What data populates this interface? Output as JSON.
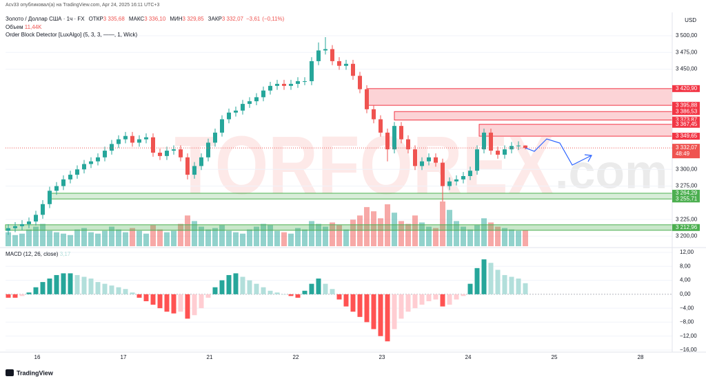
{
  "header": {
    "published": "Acv33 опубликовал(а) на TradingView.com, Apr 24, 2025 16:11 UTC+3",
    "symbol": "Золото / Доллар США · 1ч · FX",
    "ohlc": [
      {
        "name": "ОТКР",
        "value": 3335.68,
        "label": "3 335,68"
      },
      {
        "name": "МАКС",
        "value": 3336.1,
        "label": "3 336,10"
      },
      {
        "name": "МИН",
        "value": 3329.85,
        "label": "3 329,85"
      },
      {
        "name": "ЗАКР",
        "value": 3332.07,
        "label": "3 332,07"
      }
    ],
    "change": {
      "value": -3.61,
      "label": "−3,61"
    },
    "change_pct": {
      "value": -0.11,
      "label": "(−0,11%)"
    },
    "volume_name": "Объем",
    "volume_value": {
      "value": 11.44,
      "label": "11,44K"
    },
    "indicator": "Order Block Detector [LuxAlgo] (5, 3, 3, ——, 1, Wick)",
    "currency": "USD",
    "brand": "TradingView"
  },
  "watermark": {
    "main": "TORFOREX",
    "suffix": ".com"
  },
  "date_labels": [
    "16",
    "17",
    "21",
    "22",
    "23",
    "24",
    "25",
    "28"
  ],
  "chart_data": [
    {
      "type": "candlestick",
      "up_color": "#26a69a",
      "down_color": "#ef5350",
      "open": [
        3208,
        3212,
        3215,
        3218,
        3222,
        3232,
        3248,
        3268,
        3275,
        3285,
        3292,
        3300,
        3308,
        3312,
        3318,
        3328,
        3338,
        3345,
        3350,
        3340,
        3345,
        3348,
        3325,
        3320,
        3328,
        3330,
        3318,
        3292,
        3305,
        3318,
        3340,
        3355,
        3375,
        3385,
        3388,
        3398,
        3402,
        3408,
        3418,
        3425,
        3428,
        3425,
        3428,
        3432,
        3432,
        3462,
        3478,
        3480,
        3462,
        3455,
        3458,
        3440,
        3420,
        3390,
        3375,
        3355,
        3330,
        3365,
        3345,
        3330,
        3305,
        3312,
        3318,
        3310,
        3275,
        3282,
        3285,
        3290,
        3298,
        3330,
        3355,
        3328,
        3322,
        3330,
        3335,
        3335.68
      ],
      "high": [
        3218,
        3221,
        3224,
        3228,
        3238,
        3254,
        3274,
        3281,
        3291,
        3298,
        3306,
        3314,
        3318,
        3324,
        3334,
        3344,
        3351,
        3356,
        3356,
        3351,
        3354,
        3354,
        3331,
        3334,
        3336,
        3336,
        3324,
        3311,
        3324,
        3346,
        3361,
        3381,
        3391,
        3394,
        3404,
        3408,
        3414,
        3424,
        3431,
        3434,
        3434,
        3434,
        3438,
        3438,
        3468,
        3490,
        3498,
        3486,
        3468,
        3464,
        3464,
        3446,
        3426,
        3396,
        3381,
        3361,
        3371,
        3371,
        3351,
        3336,
        3318,
        3324,
        3324,
        3316,
        3288,
        3291,
        3296,
        3304,
        3336,
        3361,
        3361,
        3334,
        3336,
        3341,
        3342,
        3336.1
      ],
      "low": [
        3202,
        3206,
        3209,
        3212,
        3216,
        3226,
        3242,
        3262,
        3269,
        3279,
        3286,
        3294,
        3302,
        3306,
        3312,
        3322,
        3332,
        3339,
        3334,
        3334,
        3339,
        3319,
        3314,
        3314,
        3322,
        3312,
        3285,
        3286,
        3299,
        3312,
        3334,
        3349,
        3369,
        3379,
        3382,
        3392,
        3396,
        3402,
        3412,
        3419,
        3419,
        3419,
        3422,
        3426,
        3426,
        3456,
        3472,
        3456,
        3449,
        3449,
        3434,
        3414,
        3384,
        3369,
        3349,
        3312,
        3324,
        3339,
        3324,
        3299,
        3299,
        3306,
        3304,
        3252,
        3269,
        3276,
        3279,
        3284,
        3292,
        3324,
        3322,
        3316,
        3316,
        3324,
        3329,
        3329.85
      ],
      "close": [
        3212,
        3215,
        3218,
        3222,
        3232,
        3248,
        3268,
        3275,
        3285,
        3292,
        3300,
        3308,
        3312,
        3318,
        3328,
        3338,
        3345,
        3350,
        3340,
        3345,
        3348,
        3325,
        3320,
        3328,
        3330,
        3318,
        3292,
        3305,
        3318,
        3340,
        3355,
        3375,
        3385,
        3388,
        3398,
        3402,
        3408,
        3418,
        3425,
        3428,
        3425,
        3428,
        3432,
        3432,
        3462,
        3478,
        3480,
        3462,
        3455,
        3458,
        3440,
        3420,
        3390,
        3375,
        3355,
        3330,
        3365,
        3345,
        3330,
        3305,
        3312,
        3318,
        3310,
        3275,
        3282,
        3285,
        3290,
        3298,
        3330,
        3355,
        3328,
        3322,
        3330,
        3335,
        3335.68,
        3332.07
      ],
      "volume": [
        10,
        8,
        9,
        12,
        14,
        16,
        11,
        10,
        9,
        8,
        12,
        13,
        10,
        9,
        11,
        14,
        12,
        10,
        13,
        11,
        9,
        15,
        12,
        10,
        11,
        16,
        22,
        18,
        14,
        12,
        13,
        15,
        11,
        10,
        9,
        12,
        14,
        16,
        15,
        11,
        10,
        9,
        13,
        12,
        18,
        16,
        14,
        17,
        15,
        12,
        19,
        22,
        28,
        25,
        20,
        30,
        24,
        18,
        16,
        22,
        17,
        14,
        13,
        32,
        26,
        18,
        14,
        12,
        15,
        20,
        17,
        14,
        13,
        12,
        11,
        11.44
      ],
      "ylim": [
        3185,
        3535
      ],
      "yticks": [
        {
          "value": 3500,
          "label": "3 500,00"
        },
        {
          "value": 3475,
          "label": "3 475,00"
        },
        {
          "value": 3450,
          "label": "3 450,00"
        },
        {
          "value": 3300,
          "label": "3 300,00"
        },
        {
          "value": 3275,
          "label": "3 275,00"
        },
        {
          "value": 3225,
          "label": "3 225,00"
        },
        {
          "value": 3200,
          "label": "3 200,00"
        }
      ],
      "bearish_zones": [
        {
          "top": {
            "value": 3420.9,
            "label": "3 420,90"
          },
          "bottom": {
            "value": 3395.88,
            "label": "3 395,88"
          }
        },
        {
          "top": {
            "value": 3386.53,
            "label": "3 386,53"
          },
          "bottom": {
            "value": 3373.87,
            "label": "3 373,87"
          }
        },
        {
          "top": {
            "value": 3367.45,
            "label": "3 367,45"
          },
          "bottom": {
            "value": 3349.65,
            "label": "3 349,65"
          }
        }
      ],
      "bullish_zones": [
        {
          "top": {
            "value": 3264.29,
            "label": "3 264,29"
          },
          "bottom": {
            "value": 3255.71,
            "label": "3 255,71"
          }
        }
      ],
      "bullish_level": {
        "value": 3212.96,
        "label": "3 212,96"
      },
      "last_price": {
        "value": 3332.07,
        "label": "3 332,07"
      },
      "countdown": "48:49"
    },
    {
      "type": "macd",
      "title": "MACD (12, 26, close)",
      "values": [
        -1,
        -1,
        -0.5,
        0.5,
        2,
        3.5,
        4.5,
        5.5,
        6,
        6,
        5.5,
        5,
        4.5,
        3.5,
        3,
        2.5,
        2,
        1.5,
        0.5,
        -1,
        -2,
        -3,
        -4,
        -5,
        -5.5,
        -5,
        -7,
        -6,
        -4,
        -1,
        2,
        4,
        5.5,
        6,
        5,
        4,
        3,
        2,
        1,
        0.5,
        0,
        -0.5,
        -1,
        1,
        3,
        4.5,
        3,
        1.5,
        -1.5,
        -3.5,
        -5,
        -6.5,
        -8,
        -10,
        -12,
        -13.5,
        -10,
        -7,
        -5,
        -4,
        -3,
        -2,
        -1.5,
        -3.5,
        -3,
        -1.5,
        -0.5,
        3,
        7.5,
        10,
        9,
        7,
        5.5,
        5,
        4.5,
        3.17
      ],
      "last_label": "3,17",
      "colors": {
        "pos_rise": "#26a69a",
        "pos_fall": "#b2dfdb",
        "neg_fall": "#ff5252",
        "neg_rise": "#ffcdd2"
      },
      "ylim": [
        -16,
        12
      ],
      "yticks": [
        {
          "value": 12,
          "label": "12,00"
        },
        {
          "value": 8,
          "label": "8,00"
        },
        {
          "value": 4,
          "label": "4,00"
        },
        {
          "value": 0,
          "label": "0,00"
        },
        {
          "value": -4,
          "label": "−4,00"
        },
        {
          "value": -8,
          "label": "−8,00"
        },
        {
          "value": -12,
          "label": "−12,00"
        },
        {
          "value": -16,
          "label": "−16,00"
        }
      ]
    }
  ]
}
